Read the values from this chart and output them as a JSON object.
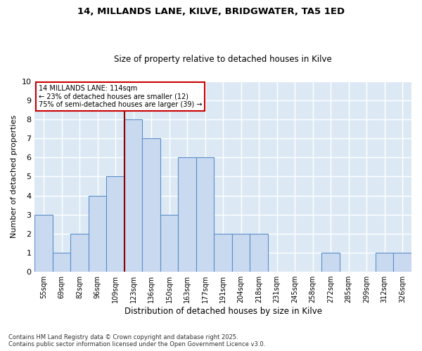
{
  "title1": "14, MILLANDS LANE, KILVE, BRIDGWATER, TA5 1ED",
  "title2": "Size of property relative to detached houses in Kilve",
  "xlabel": "Distribution of detached houses by size in Kilve",
  "ylabel": "Number of detached properties",
  "categories": [
    "55sqm",
    "69sqm",
    "82sqm",
    "96sqm",
    "109sqm",
    "123sqm",
    "136sqm",
    "150sqm",
    "163sqm",
    "177sqm",
    "191sqm",
    "204sqm",
    "218sqm",
    "231sqm",
    "245sqm",
    "258sqm",
    "272sqm",
    "285sqm",
    "299sqm",
    "312sqm",
    "326sqm"
  ],
  "values": [
    3,
    1,
    2,
    4,
    5,
    8,
    7,
    3,
    6,
    6,
    2,
    2,
    2,
    0,
    0,
    0,
    1,
    0,
    0,
    1,
    1
  ],
  "bar_color": "#c9d9f0",
  "bar_edge_color": "#5b8fc9",
  "vline_index": 4.5,
  "vline_color": "#8b0000",
  "annotation_text": "14 MILLANDS LANE: 114sqm\n← 23% of detached houses are smaller (12)\n75% of semi-detached houses are larger (39) →",
  "annotation_box_color": "#ffffff",
  "annotation_box_edge_color": "#cc0000",
  "footer": "Contains HM Land Registry data © Crown copyright and database right 2025.\nContains public sector information licensed under the Open Government Licence v3.0.",
  "ylim": [
    0,
    10
  ],
  "plot_bg_color": "#dce9f5",
  "fig_bg_color": "#ffffff",
  "grid_color": "#ffffff"
}
